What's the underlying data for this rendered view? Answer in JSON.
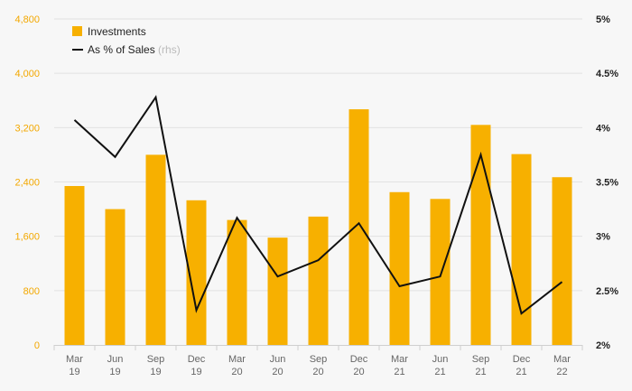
{
  "chart_data": {
    "type": "bar",
    "categories": [
      [
        "Mar",
        "19"
      ],
      [
        "Jun",
        "19"
      ],
      [
        "Sep",
        "19"
      ],
      [
        "Dec",
        "19"
      ],
      [
        "Mar",
        "20"
      ],
      [
        "Jun",
        "20"
      ],
      [
        "Sep",
        "20"
      ],
      [
        "Dec",
        "20"
      ],
      [
        "Mar",
        "21"
      ],
      [
        "Jun",
        "21"
      ],
      [
        "Sep",
        "21"
      ],
      [
        "Dec",
        "21"
      ],
      [
        "Mar",
        "22"
      ]
    ],
    "series": [
      {
        "name": "Investments",
        "type": "bar",
        "axis": "left",
        "color": "#f7b000",
        "values": [
          2340,
          2000,
          2800,
          2130,
          1840,
          1580,
          1890,
          3470,
          2250,
          2150,
          3240,
          2810,
          2470
        ]
      },
      {
        "name": "As % of Sales",
        "name_suffix": "(rhs)",
        "type": "line",
        "axis": "right",
        "color": "#111111",
        "values": [
          4.07,
          3.73,
          4.28,
          2.32,
          3.17,
          2.63,
          2.78,
          3.12,
          2.54,
          2.63,
          3.75,
          2.29,
          2.58
        ]
      }
    ],
    "y_left": {
      "min": 0,
      "max": 4800,
      "ticks": [
        "0",
        "800",
        "1,600",
        "2,400",
        "3,200",
        "4,000",
        "4,800"
      ]
    },
    "y_right": {
      "min": 2,
      "max": 5,
      "ticks": [
        "2%",
        "2.5%",
        "3%",
        "3.5%",
        "4%",
        "4.5%",
        "5%"
      ]
    },
    "grid": true,
    "legend": "top-left"
  }
}
